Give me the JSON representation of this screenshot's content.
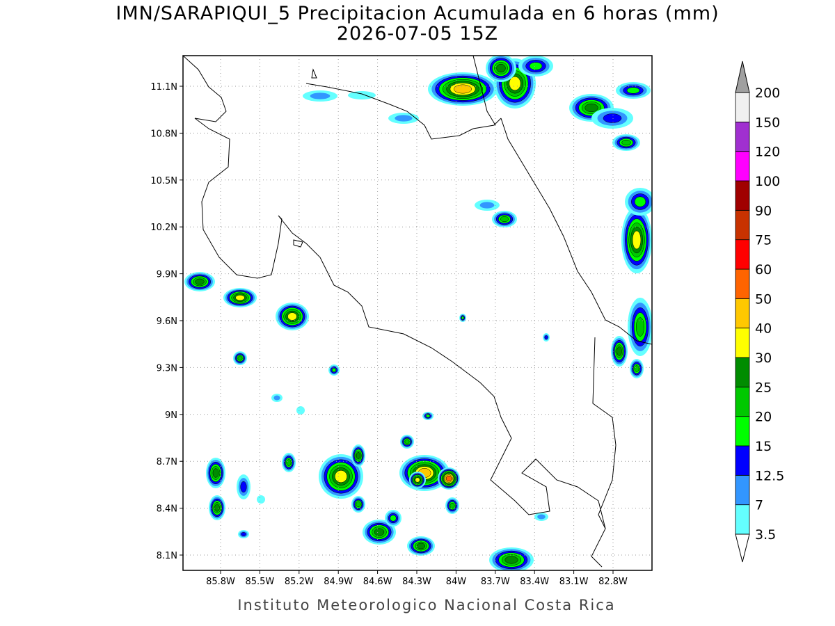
{
  "title": "IMN/SARAPIQUI_5 Precipitacion Acumulada en 6 horas (mm)",
  "subtitle": "2026-07-05 15Z",
  "map": {
    "lat_ticks": [
      "11.1N",
      "10.8N",
      "10.5N",
      "10.2N",
      "9.9N",
      "9.6N",
      "9.3N",
      "9N",
      "8.7N",
      "8.4N",
      "8.1N"
    ],
    "lon_ticks": [
      "85.8W",
      "85.5W",
      "85.2W",
      "84.9W",
      "84.6W",
      "84.3W",
      "84W",
      "83.7W",
      "83.4W",
      "83.1W",
      "82.8W"
    ],
    "grid": true
  },
  "colorbar": {
    "levels": [
      3.5,
      7,
      12.5,
      15,
      20,
      25,
      30,
      40,
      50,
      60,
      75,
      90,
      100,
      120,
      150,
      200
    ],
    "colors": [
      "#64ffff",
      "#3296ff",
      "#0000ff",
      "#00ff00",
      "#00c800",
      "#008c00",
      "#ffff00",
      "#ffc800",
      "#ff6400",
      "#ff0000",
      "#c83200",
      "#a00000",
      "#ff00ff",
      "#a030d0",
      "#f0f0f0"
    ],
    "over_color": "#a0a0a0",
    "under_color": "#ffffff"
  },
  "footer": "Instituto Meteorologico Nacional Costa Rica"
}
